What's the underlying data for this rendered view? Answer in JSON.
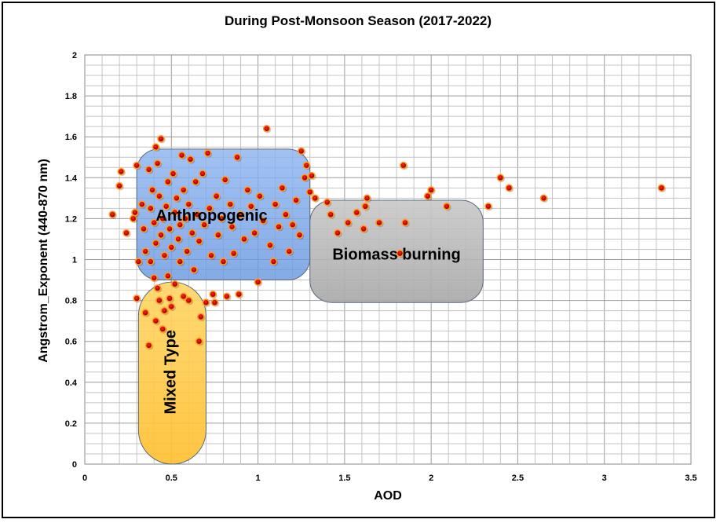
{
  "chart_data": {
    "type": "scatter",
    "title": "During Post-Monsoon Season (2017-2022)",
    "xlabel": "AOD",
    "ylabel": "Angstrom_Exponent (440-870 nm)",
    "xlim": [
      0,
      3.5
    ],
    "ylim": [
      0,
      2
    ],
    "x_ticks": [
      "0",
      "0.5",
      "1",
      "1.5",
      "2",
      "2.5",
      "3",
      "3.5"
    ],
    "y_ticks": [
      "0",
      "0.2",
      "0.4",
      "0.6",
      "0.8",
      "1",
      "1.2",
      "1.4",
      "1.6",
      "1.8",
      "2"
    ],
    "grid": true,
    "regions": [
      {
        "label": "Anthropogenic",
        "x_range": [
          0.3,
          1.3
        ],
        "y_range": [
          0.9,
          1.54
        ],
        "color": "#6f9ce6"
      },
      {
        "label": "Biomass burning",
        "x_range": [
          1.3,
          2.3
        ],
        "y_range": [
          0.79,
          1.29
        ],
        "color": "#b4b4b4"
      },
      {
        "label": "Mixed Type",
        "x_range": [
          0.31,
          0.7
        ],
        "y_range": [
          0.0,
          0.89
        ],
        "color": "#ffc83c"
      }
    ],
    "point_colors": {
      "fill": "#c00000",
      "edge": "#ff9b1e"
    },
    "points": [
      [
        0.16,
        1.22
      ],
      [
        0.2,
        1.36
      ],
      [
        0.21,
        1.43
      ],
      [
        0.24,
        1.13
      ],
      [
        0.28,
        1.2
      ],
      [
        0.29,
        1.23
      ],
      [
        0.3,
        1.46
      ],
      [
        0.3,
        0.81
      ],
      [
        0.31,
        0.99
      ],
      [
        0.33,
        1.27
      ],
      [
        0.34,
        1.15
      ],
      [
        0.35,
        1.04
      ],
      [
        0.35,
        0.74
      ],
      [
        0.37,
        1.44
      ],
      [
        0.37,
        0.58
      ],
      [
        0.38,
        1.25
      ],
      [
        0.38,
        0.99
      ],
      [
        0.39,
        1.34
      ],
      [
        0.4,
        1.18
      ],
      [
        0.4,
        0.91
      ],
      [
        0.41,
        1.55
      ],
      [
        0.41,
        1.08
      ],
      [
        0.41,
        0.7
      ],
      [
        0.42,
        0.86
      ],
      [
        0.42,
        1.47
      ],
      [
        0.43,
        1.31
      ],
      [
        0.43,
        0.8
      ],
      [
        0.44,
        1.59
      ],
      [
        0.44,
        1.12
      ],
      [
        0.45,
        1.2
      ],
      [
        0.45,
        0.66
      ],
      [
        0.46,
        1.02
      ],
      [
        0.46,
        0.75
      ],
      [
        0.47,
        1.26
      ],
      [
        0.48,
        1.38
      ],
      [
        0.48,
        0.92
      ],
      [
        0.49,
        1.15
      ],
      [
        0.49,
        0.81
      ],
      [
        0.5,
        1.06
      ],
      [
        0.5,
        0.77
      ],
      [
        0.51,
        1.42
      ],
      [
        0.52,
        1.23
      ],
      [
        0.52,
        0.88
      ],
      [
        0.53,
        1.3
      ],
      [
        0.54,
        1.1
      ],
      [
        0.55,
        0.99
      ],
      [
        0.55,
        1.17
      ],
      [
        0.56,
        1.51
      ],
      [
        0.57,
        1.34
      ],
      [
        0.57,
        0.82
      ],
      [
        0.58,
        1.2
      ],
      [
        0.59,
        1.04
      ],
      [
        0.6,
        0.8
      ],
      [
        0.6,
        1.27
      ],
      [
        0.61,
        1.49
      ],
      [
        0.62,
        1.13
      ],
      [
        0.63,
        0.95
      ],
      [
        0.64,
        1.38
      ],
      [
        0.65,
        1.22
      ],
      [
        0.66,
        1.09
      ],
      [
        0.66,
        0.6
      ],
      [
        0.67,
        0.72
      ],
      [
        0.68,
        1.42
      ],
      [
        0.69,
        1.17
      ],
      [
        0.7,
        0.79
      ],
      [
        0.71,
        1.52
      ],
      [
        0.72,
        1.25
      ],
      [
        0.73,
        1.02
      ],
      [
        0.74,
        0.83
      ],
      [
        0.75,
        0.79
      ],
      [
        0.76,
        1.31
      ],
      [
        0.77,
        1.12
      ],
      [
        0.79,
        1.2
      ],
      [
        0.8,
        0.99
      ],
      [
        0.81,
        1.39
      ],
      [
        0.82,
        0.82
      ],
      [
        0.84,
        1.27
      ],
      [
        0.85,
        1.16
      ],
      [
        0.86,
        1.03
      ],
      [
        0.88,
        1.5
      ],
      [
        0.89,
        0.83
      ],
      [
        0.9,
        1.22
      ],
      [
        0.92,
        1.1
      ],
      [
        0.94,
        1.34
      ],
      [
        0.96,
        1.26
      ],
      [
        0.98,
        1.13
      ],
      [
        1.0,
        0.89
      ],
      [
        1.01,
        1.31
      ],
      [
        1.03,
        1.19
      ],
      [
        1.05,
        1.64
      ],
      [
        1.07,
        1.07
      ],
      [
        1.09,
        0.99
      ],
      [
        1.1,
        1.27
      ],
      [
        1.12,
        1.16
      ],
      [
        1.14,
        1.35
      ],
      [
        1.16,
        1.22
      ],
      [
        1.18,
        1.04
      ],
      [
        1.2,
        1.17
      ],
      [
        1.22,
        1.29
      ],
      [
        1.24,
        1.12
      ],
      [
        1.25,
        1.53
      ],
      [
        1.27,
        1.4
      ],
      [
        1.28,
        1.46
      ],
      [
        1.3,
        1.33
      ],
      [
        1.31,
        1.41
      ],
      [
        1.33,
        1.3
      ],
      [
        1.4,
        1.28
      ],
      [
        1.42,
        1.22
      ],
      [
        1.46,
        1.13
      ],
      [
        1.52,
        1.18
      ],
      [
        1.57,
        1.23
      ],
      [
        1.61,
        1.15
      ],
      [
        1.62,
        1.26
      ],
      [
        1.63,
        1.3
      ],
      [
        1.7,
        1.18
      ],
      [
        1.82,
        1.03
      ],
      [
        1.84,
        1.46
      ],
      [
        1.85,
        1.18
      ],
      [
        1.98,
        1.31
      ],
      [
        2.0,
        1.34
      ],
      [
        2.09,
        1.26
      ],
      [
        2.33,
        1.26
      ],
      [
        2.4,
        1.4
      ],
      [
        2.45,
        1.35
      ],
      [
        2.65,
        1.3
      ],
      [
        3.33,
        1.35
      ]
    ]
  }
}
